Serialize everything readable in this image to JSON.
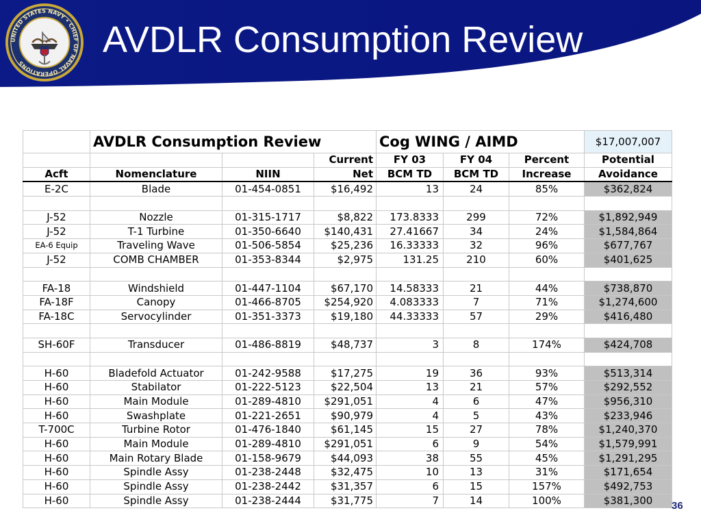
{
  "slide": {
    "title": "AVDLR Consumption Review",
    "page_number": "36",
    "seal_text": "UNITED STATES NAVY • CHIEF OF NAVAL OPERATIONS",
    "colors": {
      "banner": "#0a1a8c",
      "potential_fill": "#c0c0c0",
      "total_fill": "#e6f2fa"
    }
  },
  "table": {
    "title": "AVDLR Consumption Review",
    "subtitle": "Cog WING / AIMD",
    "total": "$17,007,007",
    "header_row1": [
      "",
      "",
      "",
      "Current",
      "FY 03",
      "FY 04",
      "Percent",
      "Potential"
    ],
    "header_row2": [
      "Acft",
      "Nomenclature",
      "NIIN",
      "Net",
      "BCM TD",
      "BCM TD",
      "Increase",
      "Avoidance"
    ],
    "rows": [
      [
        "E-2C",
        "Blade",
        "01-454-0851",
        "$16,492",
        "13",
        "24",
        "85%",
        "$362,824"
      ],
      [
        "",
        "",
        "",
        "",
        "",
        "",
        "",
        ""
      ],
      [
        "J-52",
        "Nozzle",
        "01-315-1717",
        "$8,822",
        "173.8333",
        "299",
        "72%",
        "$1,892,949"
      ],
      [
        "J-52",
        "T-1 Turbine",
        "01-350-6640",
        "$140,431",
        "27.41667",
        "34",
        "24%",
        "$1,584,864"
      ],
      [
        "EA-6 Equip",
        "Traveling Wave",
        "01-506-5854",
        "$25,236",
        "16.33333",
        "32",
        "96%",
        "$677,767"
      ],
      [
        "J-52",
        "COMB CHAMBER",
        "01-353-8344",
        "$2,975",
        "131.25",
        "210",
        "60%",
        "$401,625"
      ],
      [
        "",
        "",
        "",
        "",
        "",
        "",
        "",
        ""
      ],
      [
        "FA-18",
        "Windshield",
        "01-447-1104",
        "$67,170",
        "14.58333",
        "21",
        "44%",
        "$738,870"
      ],
      [
        "FA-18F",
        "Canopy",
        "01-466-8705",
        "$254,920",
        "4.083333",
        "7",
        "71%",
        "$1,274,600"
      ],
      [
        "FA-18C",
        "Servocylinder",
        "01-351-3373",
        "$19,180",
        "44.33333",
        "57",
        "29%",
        "$416,480"
      ],
      [
        "",
        "",
        "",
        "",
        "",
        "",
        "",
        ""
      ],
      [
        "SH-60F",
        "Transducer",
        "01-486-8819",
        "$48,737",
        "3",
        "8",
        "174%",
        "$424,708"
      ],
      [
        "",
        "",
        "",
        "",
        "",
        "",
        "",
        ""
      ],
      [
        "H-60",
        "Bladefold Actuator",
        "01-242-9588",
        "$17,275",
        "19",
        "36",
        "93%",
        "$513,314"
      ],
      [
        "H-60",
        "Stabilator",
        "01-222-5123",
        "$22,504",
        "13",
        "21",
        "57%",
        "$292,552"
      ],
      [
        "H-60",
        "Main Module",
        "01-289-4810",
        "$291,051",
        "4",
        "6",
        "47%",
        "$956,310"
      ],
      [
        "H-60",
        "Swashplate",
        "01-221-2651",
        "$90,979",
        "4",
        "5",
        "43%",
        "$233,946"
      ],
      [
        "T-700C",
        "Turbine Rotor",
        "01-476-1840",
        "$61,145",
        "15",
        "27",
        "78%",
        "$1,240,370"
      ],
      [
        "H-60",
        "Main Module",
        "01-289-4810",
        "$291,051",
        "6",
        "9",
        "54%",
        "$1,579,991"
      ],
      [
        "H-60",
        "Main Rotary Blade",
        "01-158-9679",
        "$44,093",
        "38",
        "55",
        "45%",
        "$1,291,295"
      ],
      [
        "H-60",
        "Spindle Assy",
        "01-238-2448",
        "$32,475",
        "10",
        "13",
        "31%",
        "$171,654"
      ],
      [
        "H-60",
        "Spindle Assy",
        "01-238-2442",
        "$31,357",
        "6",
        "15",
        "157%",
        "$492,753"
      ],
      [
        "H-60",
        "Spindle Assy",
        "01-238-2444",
        "$31,775",
        "7",
        "14",
        "100%",
        "$381,300"
      ]
    ]
  }
}
